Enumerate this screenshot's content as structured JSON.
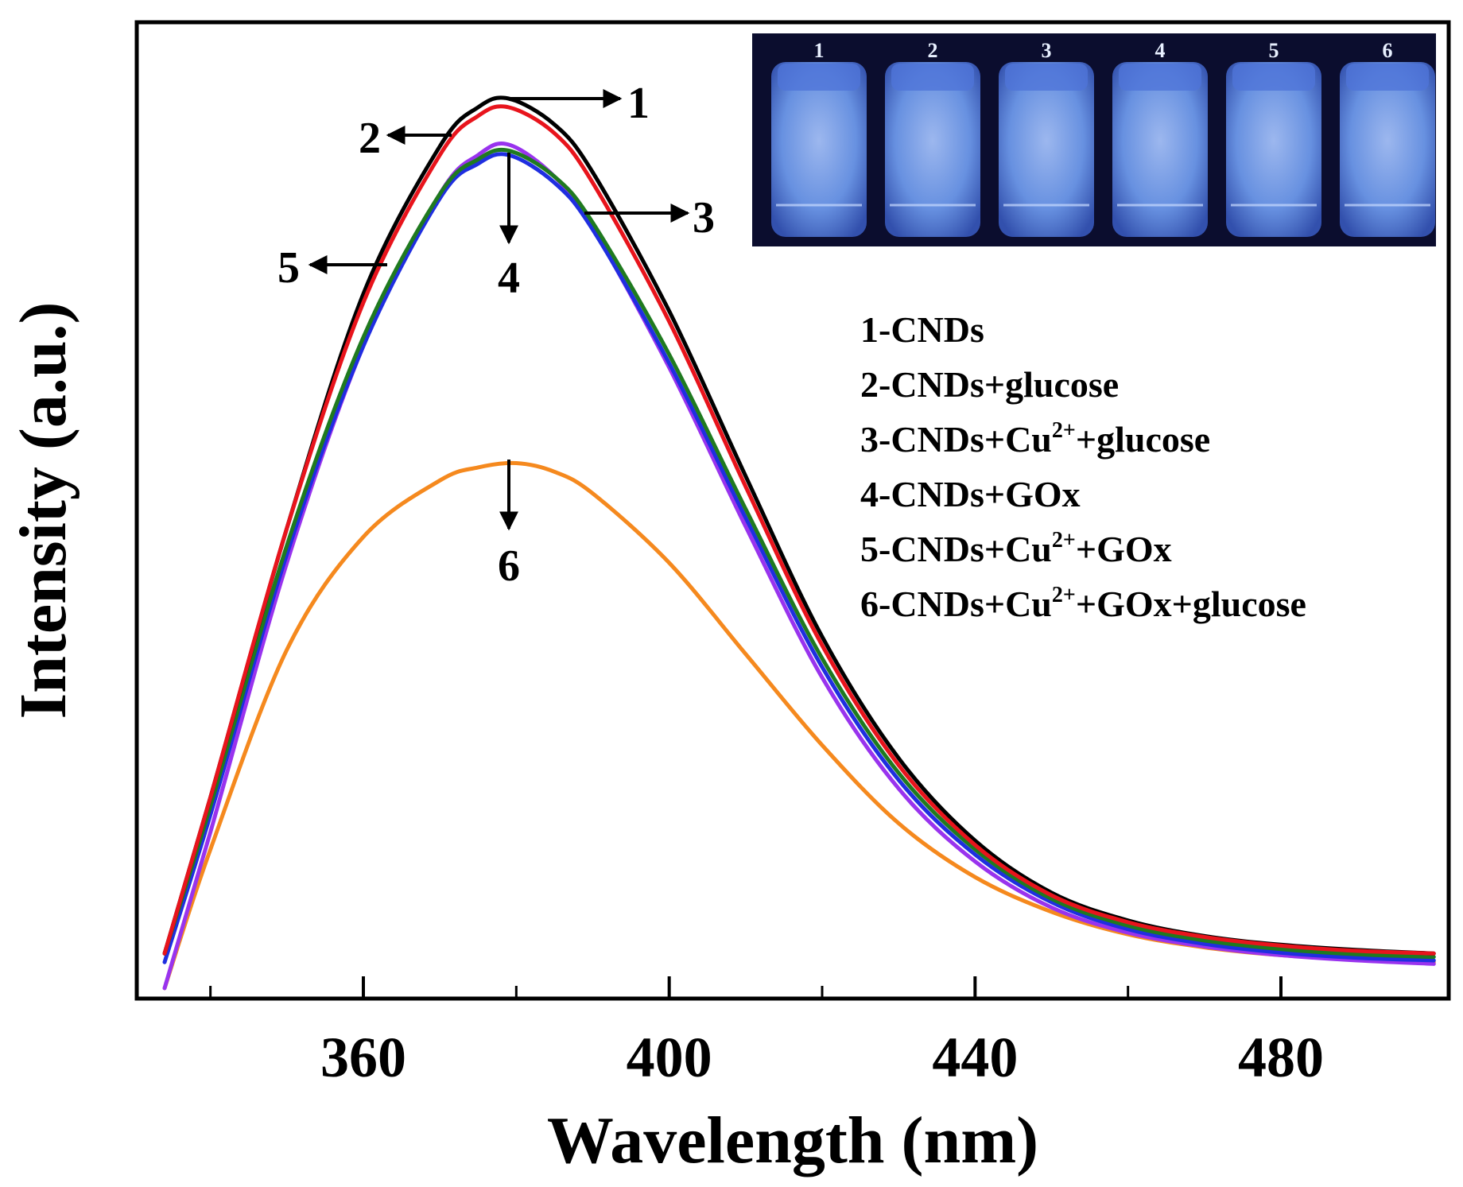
{
  "chart_data": {
    "type": "line",
    "xlabel": "Wavelength (nm)",
    "ylabel": "Intensity (a.u.)",
    "xlim": [
      330,
      500
    ],
    "ylim": [
      0,
      1.05
    ],
    "x_ticks": [
      360,
      400,
      440,
      480
    ],
    "x_minor_ticks": [
      340,
      380,
      420,
      460
    ],
    "y_ticks_shown": false,
    "grid": false,
    "legend_position": "right",
    "series": [
      {
        "id": "1",
        "name": "1-CNDs",
        "color": "#000000",
        "x": [
          334,
          340,
          350,
          360,
          370,
          375,
          379,
          385,
          390,
          400,
          410,
          420,
          430,
          440,
          450,
          460,
          470,
          480,
          490,
          500
        ],
        "y": [
          0.03,
          0.21,
          0.52,
          0.79,
          0.96,
          1.005,
          1.015,
          0.985,
          0.93,
          0.77,
          0.58,
          0.395,
          0.255,
          0.16,
          0.1,
          0.068,
          0.05,
          0.04,
          0.034,
          0.03
        ]
      },
      {
        "id": "2",
        "name": "2-CNDs+glucose",
        "color": "#e8141c",
        "x": [
          334,
          340,
          350,
          360,
          370,
          375,
          379,
          385,
          390,
          400,
          410,
          420,
          430,
          440,
          450,
          460,
          470,
          480,
          490,
          500
        ],
        "y": [
          0.03,
          0.21,
          0.52,
          0.78,
          0.95,
          0.995,
          1.005,
          0.975,
          0.918,
          0.758,
          0.568,
          0.385,
          0.247,
          0.155,
          0.097,
          0.066,
          0.049,
          0.039,
          0.033,
          0.03
        ]
      },
      {
        "id": "3",
        "name": "3-CNDs+Cu²⁺+glucose",
        "color": "#1f7a1f",
        "x": [
          334,
          340,
          350,
          360,
          370,
          375,
          379,
          385,
          390,
          400,
          410,
          420,
          430,
          440,
          450,
          460,
          470,
          480,
          490,
          500
        ],
        "y": [
          0.03,
          0.2,
          0.5,
          0.74,
          0.905,
          0.945,
          0.955,
          0.925,
          0.872,
          0.72,
          0.542,
          0.37,
          0.238,
          0.15,
          0.093,
          0.062,
          0.045,
          0.035,
          0.029,
          0.026
        ]
      },
      {
        "id": "4",
        "name": "4-CNDs+GOx",
        "color": "#1f2ee0",
        "x": [
          334,
          340,
          350,
          360,
          370,
          375,
          379,
          385,
          390,
          400,
          410,
          420,
          430,
          440,
          450,
          460,
          470,
          480,
          490,
          500
        ],
        "y": [
          0.02,
          0.19,
          0.49,
          0.73,
          0.9,
          0.94,
          0.95,
          0.918,
          0.864,
          0.71,
          0.532,
          0.36,
          0.23,
          0.144,
          0.089,
          0.058,
          0.041,
          0.031,
          0.025,
          0.022
        ]
      },
      {
        "id": "5",
        "name": "5-CNDs+Cu²⁺+GOx",
        "color": "#9933ee",
        "x": [
          334,
          340,
          350,
          360,
          370,
          375,
          379,
          385,
          390,
          400,
          410,
          420,
          430,
          440,
          450,
          460,
          470,
          480,
          490,
          500
        ],
        "y": [
          -0.01,
          0.17,
          0.48,
          0.73,
          0.905,
          0.95,
          0.962,
          0.925,
          0.866,
          0.705,
          0.522,
          0.348,
          0.22,
          0.136,
          0.083,
          0.054,
          0.038,
          0.028,
          0.022,
          0.018
        ]
      },
      {
        "id": "6",
        "name": "6-CNDs+Cu²⁺+GOx+glucose",
        "color": "#f5891e",
        "x": [
          334,
          340,
          350,
          360,
          370,
          375,
          380,
          385,
          390,
          400,
          410,
          420,
          430,
          440,
          450,
          460,
          470,
          480,
          490,
          500
        ],
        "y": [
          -0.01,
          0.15,
          0.38,
          0.51,
          0.575,
          0.59,
          0.595,
          0.585,
          0.56,
          0.48,
          0.375,
          0.27,
          0.18,
          0.118,
          0.078,
          0.052,
          0.037,
          0.028,
          0.023,
          0.02
        ]
      }
    ],
    "annotations": [
      {
        "label": "1",
        "series": "1",
        "direction": "right"
      },
      {
        "label": "2",
        "series": "2",
        "direction": "left"
      },
      {
        "label": "3",
        "series": "3",
        "direction": "right"
      },
      {
        "label": "4",
        "series": "4",
        "direction": "down"
      },
      {
        "label": "5",
        "series": "5",
        "direction": "left"
      },
      {
        "label": "6",
        "series": "6",
        "direction": "down"
      }
    ],
    "legend": [
      {
        "prefix": "1-CNDs",
        "sup": "",
        "suffix": ""
      },
      {
        "prefix": "2-CNDs+glucose",
        "sup": "",
        "suffix": ""
      },
      {
        "prefix": "3-CNDs+Cu",
        "sup": "2+",
        "suffix": "+glucose"
      },
      {
        "prefix": "4-CNDs+GOx",
        "sup": "",
        "suffix": ""
      },
      {
        "prefix": "5-CNDs+Cu",
        "sup": "2+",
        "suffix": "+GOx"
      },
      {
        "prefix": "6-CNDs+Cu",
        "sup": "2+",
        "suffix": "+GOx+glucose"
      }
    ],
    "inset_photo": {
      "description_hidden": true,
      "vial_labels": [
        "1",
        "2",
        "3",
        "4",
        "5",
        "6"
      ],
      "background_color": "#0b0d2e",
      "vial_color": "#6f9cf0"
    }
  }
}
